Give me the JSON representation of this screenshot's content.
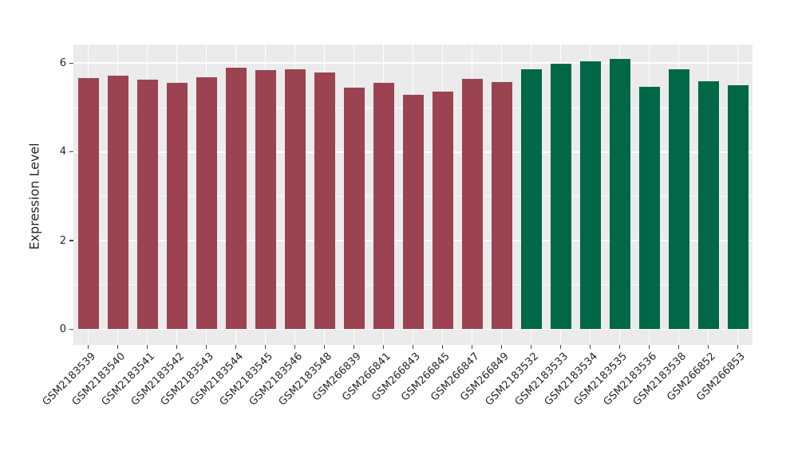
{
  "chart_data": {
    "type": "bar",
    "title": "",
    "xlabel": "",
    "ylabel": "Expression Level",
    "categories": [
      "GSM2183539",
      "GSM2183540",
      "GSM2183541",
      "GSM2183542",
      "GSM2183543",
      "GSM2183544",
      "GSM2183545",
      "GSM2183546",
      "GSM2183548",
      "GSM266839",
      "GSM266841",
      "GSM266843",
      "GSM266845",
      "GSM266847",
      "GSM266849",
      "GSM2183532",
      "GSM2183533",
      "GSM2183534",
      "GSM2183535",
      "GSM2183536",
      "GSM2183538",
      "GSM266852",
      "GSM266853"
    ],
    "values": [
      5.67,
      5.71,
      5.62,
      5.56,
      5.68,
      5.89,
      5.84,
      5.87,
      5.79,
      5.45,
      5.55,
      5.28,
      5.36,
      5.65,
      5.57,
      5.86,
      5.98,
      6.05,
      6.1,
      5.47,
      5.86,
      5.6,
      5.51
    ],
    "bar_group": [
      "maroon",
      "maroon",
      "maroon",
      "maroon",
      "maroon",
      "maroon",
      "maroon",
      "maroon",
      "maroon",
      "maroon",
      "maroon",
      "maroon",
      "maroon",
      "maroon",
      "maroon",
      "green",
      "green",
      "green",
      "green",
      "green",
      "green",
      "green",
      "green"
    ],
    "group_colors": {
      "maroon": "#9b4351",
      "green": "#006747"
    },
    "yticks": [
      "0",
      "2",
      "4",
      "6"
    ],
    "ytick_values": [
      0,
      2,
      4,
      6
    ],
    "minor_grid_values": [
      1,
      3,
      5
    ],
    "ylim": [
      -0.35,
      6.42
    ],
    "legend": "none",
    "grid": "on",
    "panel_background": "#ebebeb",
    "grid_color": "#ffffff",
    "text_color": "#262626",
    "x_tick_rotation_deg": 45
  }
}
